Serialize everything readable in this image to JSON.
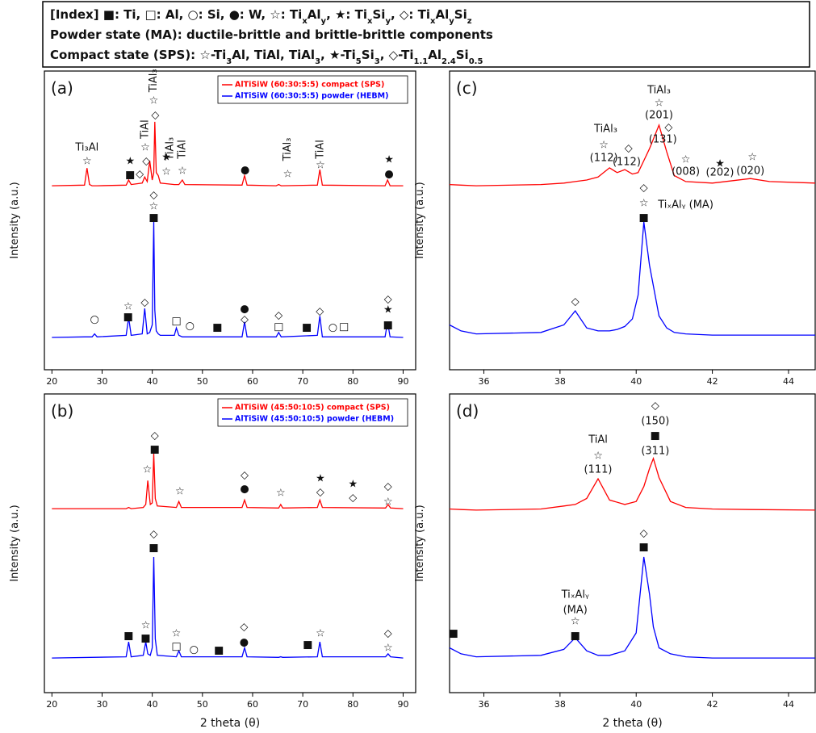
{
  "header": {
    "lines": [
      [
        "[Index] ■: Ti, □: Al, ○: Si, ●: W, ☆: Ti",
        {
          "text": "x",
          "sub": true
        },
        "Al",
        {
          "text": "y",
          "sub": true
        },
        ", ★: Ti",
        {
          "text": "x",
          "sub": true
        },
        "Si",
        {
          "text": "y",
          "sub": true
        },
        ", ◇: Ti",
        {
          "text": "x",
          "sub": true
        },
        "Al",
        {
          "text": "y",
          "sub": true
        },
        "Si",
        {
          "text": "z",
          "sub": true
        }
      ],
      [
        "Powder state (MA): ductile-brittle and brittle-brittle components"
      ],
      [
        "Compact state (SPS): ☆-Ti",
        {
          "text": "3",
          "sub": true
        },
        "Al, TiAl, TiAl",
        {
          "text": "3",
          "sub": true
        },
        ", ★-Ti",
        {
          "text": "5",
          "sub": true
        },
        "Si",
        {
          "text": "3",
          "sub": true
        },
        ", ◇-Ti",
        {
          "text": "1.1",
          "sub": true
        },
        "Al",
        {
          "text": "2.4",
          "sub": true
        },
        "Si",
        {
          "text": "0.5",
          "sub": true
        }
      ]
    ]
  },
  "chart_data": [
    {
      "type": "line",
      "panel": "(a)",
      "y_label": "Intensity (a.u.)",
      "legend": true,
      "xlim": [
        18.5,
        92.5
      ],
      "xticks": [
        20,
        30,
        40,
        50,
        60,
        70,
        80,
        90
      ],
      "ylim": [
        0,
        100
      ],
      "x": [
        20,
        26.5,
        27,
        27.5,
        28,
        28.5,
        29,
        34.8,
        35.3,
        35.8,
        38,
        38.5,
        39,
        39.5,
        40,
        40.3,
        40.5,
        40.8,
        41.2,
        41.6,
        44.4,
        44.8,
        45.3,
        46,
        46.5,
        57.9,
        58.4,
        58.9,
        64.7,
        65.2,
        65.7,
        72.9,
        73.4,
        73.9,
        86.4,
        86.9,
        87.4,
        90
      ],
      "series": [
        {
          "name": "AlTiSiW (60:30:5:5) compact (SPS)",
          "color": "#ff0000",
          "values": [
            61.6,
            61.8,
            67.5,
            62,
            61.6,
            61.6,
            61.6,
            61.8,
            63.5,
            62,
            62.5,
            64.5,
            63,
            70,
            63.5,
            66,
            83,
            66,
            65,
            62.5,
            62,
            62,
            62,
            63.5,
            62,
            61.8,
            65,
            61.8,
            61.6,
            62,
            61.6,
            61.8,
            67,
            61.8,
            61.6,
            63.5,
            61.6,
            61.6
          ]
        },
        {
          "name": "AlTiSiW (60:30:5:5) powder (HEBM)",
          "color": "#0000ff",
          "values": [
            10.8,
            11,
            11,
            11,
            11,
            12,
            11,
            11.5,
            17.5,
            11.5,
            12,
            20.5,
            12,
            12.5,
            15,
            49.5,
            20,
            13,
            12,
            11.5,
            11.5,
            14,
            11.5,
            11,
            11,
            11,
            16,
            11,
            11,
            12.5,
            11,
            11.5,
            18,
            11,
            11,
            16,
            11,
            10.8
          ]
        }
      ],
      "annotations": [
        {
          "text": "Ti₃Al",
          "x": 27,
          "y": 74.3
        },
        {
          "text": "☆",
          "x": 27,
          "y": 69.7
        },
        {
          "text": "★",
          "x": 35.6,
          "y": 69.7
        },
        {
          "text": "■",
          "x": 35.6,
          "y": 65.1
        },
        {
          "text": "◇",
          "x": 37.5,
          "y": 65.4
        },
        {
          "text": "◇",
          "x": 38.8,
          "y": 69.7
        },
        {
          "text": "☆",
          "x": 38.6,
          "y": 74.3
        },
        {
          "text": "TiAl",
          "x": 38.6,
          "y": 80.5,
          "vertical": true
        },
        {
          "text": "☆",
          "x": 40.3,
          "y": 90
        },
        {
          "text": "TiAl₃",
          "x": 40.3,
          "y": 96.8,
          "vertical": true
        },
        {
          "text": "◇",
          "x": 40.6,
          "y": 85.1
        },
        {
          "text": "★",
          "x": 42.8,
          "y": 71.1
        },
        {
          "text": "TiAl₃",
          "x": 43.6,
          "y": 74,
          "vertical": true
        },
        {
          "text": "☆",
          "x": 42.8,
          "y": 66.2
        },
        {
          "text": "TiAl",
          "x": 46,
          "y": 73.8,
          "vertical": true
        },
        {
          "text": "☆",
          "x": 46,
          "y": 66.5
        },
        {
          "text": "●",
          "x": 58.5,
          "y": 66.8
        },
        {
          "text": "TiAl₃",
          "x": 67,
          "y": 73.8,
          "vertical": true
        },
        {
          "text": "☆",
          "x": 67,
          "y": 65.4
        },
        {
          "text": "TiAl",
          "x": 73.5,
          "y": 73.8,
          "vertical": true
        },
        {
          "text": "☆",
          "x": 73.5,
          "y": 68.4
        },
        {
          "text": "★",
          "x": 87.2,
          "y": 70.3
        },
        {
          "text": "●",
          "x": 87.2,
          "y": 65.4
        },
        {
          "text": "○",
          "x": 28.5,
          "y": 16.8
        },
        {
          "text": "☆",
          "x": 35.2,
          "y": 21.1
        },
        {
          "text": "■",
          "x": 35.2,
          "y": 17.6
        },
        {
          "text": "◇",
          "x": 38.5,
          "y": 22.4
        },
        {
          "text": "◇",
          "x": 40.3,
          "y": 58.4
        },
        {
          "text": "☆",
          "x": 40.3,
          "y": 54.6
        },
        {
          "text": "■",
          "x": 40.3,
          "y": 50.8
        },
        {
          "text": "□",
          "x": 44.8,
          "y": 16.2
        },
        {
          "text": "○",
          "x": 47.5,
          "y": 14.6
        },
        {
          "text": "■",
          "x": 53,
          "y": 14.1
        },
        {
          "text": "●",
          "x": 58.4,
          "y": 20.3
        },
        {
          "text": "◇",
          "x": 58.4,
          "y": 16.8
        },
        {
          "text": "◇",
          "x": 65.2,
          "y": 18.1
        },
        {
          "text": "□",
          "x": 65.2,
          "y": 14.3
        },
        {
          "text": "■",
          "x": 70.8,
          "y": 14.1
        },
        {
          "text": "◇",
          "x": 73.4,
          "y": 19.5
        },
        {
          "text": "○",
          "x": 76,
          "y": 14.1
        },
        {
          "text": "□",
          "x": 78.2,
          "y": 14.3
        },
        {
          "text": "◇",
          "x": 87,
          "y": 23.5
        },
        {
          "text": "★",
          "x": 87,
          "y": 20
        },
        {
          "text": "■",
          "x": 87,
          "y": 14.9
        }
      ]
    },
    {
      "type": "line",
      "panel": "(b)",
      "y_label": "Intensity (a.u.)",
      "x_label": "2 theta (θ)",
      "legend": true,
      "xlim": [
        18.5,
        92.5
      ],
      "xticks": [
        20,
        30,
        40,
        50,
        60,
        70,
        80,
        90
      ],
      "ylim": [
        0,
        100
      ],
      "x": [
        20,
        34.8,
        35.3,
        35.8,
        38.2,
        38.7,
        39.1,
        39.6,
        40,
        40.3,
        40.6,
        41,
        44.8,
        45.3,
        45.8,
        57.9,
        58.4,
        58.9,
        65.2,
        65.6,
        66,
        72.9,
        73.4,
        73.9,
        86.5,
        87,
        87.5,
        90
      ],
      "series": [
        {
          "name": "AlTiSiW (45:50:10:5) compact (SPS)",
          "color": "#ff0000",
          "values": [
            61.6,
            61.6,
            62,
            61.6,
            62,
            63,
            71,
            63,
            63.5,
            80,
            65,
            62.5,
            62,
            64,
            62,
            62,
            64.5,
            62,
            61.8,
            63,
            61.8,
            62,
            64.5,
            62,
            61.8,
            63,
            61.8,
            61.6
          ]
        },
        {
          "name": "AlTiSiW (45:50:10:5) powder (HEBM)",
          "color": "#0000ff",
          "values": [
            11.6,
            12,
            17,
            12,
            12.5,
            17,
            13,
            12.5,
            15,
            45.4,
            18,
            12.5,
            12,
            14,
            12,
            12,
            15,
            12,
            11.8,
            12,
            11.8,
            12,
            17,
            12,
            12,
            13,
            12,
            11.6
          ]
        }
      ],
      "annotations": [
        {
          "text": "☆",
          "x": 39,
          "y": 74.6
        },
        {
          "text": "◇",
          "x": 40.5,
          "y": 85.9
        },
        {
          "text": "■",
          "x": 40.5,
          "y": 81.4
        },
        {
          "text": "☆",
          "x": 45.5,
          "y": 67.3
        },
        {
          "text": "◇",
          "x": 58.4,
          "y": 72.7
        },
        {
          "text": "●",
          "x": 58.4,
          "y": 68.1
        },
        {
          "text": "☆",
          "x": 65.6,
          "y": 66.8
        },
        {
          "text": "★",
          "x": 73.5,
          "y": 71.6
        },
        {
          "text": "◇",
          "x": 73.5,
          "y": 67
        },
        {
          "text": "★",
          "x": 80,
          "y": 69.7
        },
        {
          "text": "◇",
          "x": 80,
          "y": 65.1
        },
        {
          "text": "◇",
          "x": 87,
          "y": 68.9
        },
        {
          "text": "☆",
          "x": 87,
          "y": 63.8
        },
        {
          "text": "◇",
          "x": 40.3,
          "y": 53
        },
        {
          "text": "■",
          "x": 40.3,
          "y": 48.4
        },
        {
          "text": "■",
          "x": 35.3,
          "y": 18.9
        },
        {
          "text": "☆",
          "x": 38.7,
          "y": 22.4
        },
        {
          "text": "■",
          "x": 38.7,
          "y": 18.1
        },
        {
          "text": "☆",
          "x": 44.8,
          "y": 19.7
        },
        {
          "text": "□",
          "x": 44.8,
          "y": 15.4
        },
        {
          "text": "○",
          "x": 48.3,
          "y": 14.3
        },
        {
          "text": "■",
          "x": 53.3,
          "y": 14.1
        },
        {
          "text": "◇",
          "x": 58.3,
          "y": 21.9
        },
        {
          "text": "●",
          "x": 58.3,
          "y": 16.8
        },
        {
          "text": "■",
          "x": 71,
          "y": 15.9
        },
        {
          "text": "☆",
          "x": 73.5,
          "y": 19.7
        },
        {
          "text": "◇",
          "x": 87,
          "y": 19.7
        },
        {
          "text": "☆",
          "x": 87,
          "y": 14.9
        }
      ]
    },
    {
      "type": "line",
      "panel": "(c)",
      "y_label": "Intensity (a.u.)",
      "xlim": [
        35.1,
        44.7
      ],
      "xticks": [
        36,
        38,
        40,
        42,
        44
      ],
      "ylim": [
        0,
        100
      ],
      "x": [
        35.1,
        35.4,
        35.8,
        37.5,
        38.1,
        38.4,
        38.7,
        39.0,
        39.3,
        39.5,
        39.7,
        39.9,
        40.05,
        40.2,
        40.35,
        40.6,
        40.8,
        41.0,
        41.3,
        42,
        43,
        43.5,
        44.7
      ],
      "series": [
        {
          "color": "#ff0000",
          "values": [
            62,
            61.8,
            61.6,
            62,
            62.5,
            63,
            63.5,
            64.5,
            67.6,
            66,
            67,
            65.5,
            66,
            70,
            74,
            81.9,
            73,
            65,
            63,
            62.5,
            64,
            63,
            62.5
          ]
        },
        {
          "color": "#0000ff",
          "values": [
            15,
            13,
            12,
            12.5,
            15,
            19.7,
            14,
            13,
            13,
            13.5,
            14.5,
            17,
            25,
            49.5,
            35,
            18,
            14,
            12.5,
            12,
            11.6,
            11.6,
            11.6,
            11.6
          ]
        }
      ],
      "annotations": [
        {
          "text": "TiAl₃",
          "x": 40.6,
          "y": 93.5
        },
        {
          "text": "☆",
          "x": 40.6,
          "y": 89.2
        },
        {
          "text": "(201)",
          "x": 40.6,
          "y": 85.1
        },
        {
          "text": "◇",
          "x": 40.85,
          "y": 81.1
        },
        {
          "text": "(131)",
          "x": 40.7,
          "y": 77
        },
        {
          "text": "TiAl₃",
          "x": 39.2,
          "y": 80.5
        },
        {
          "text": "☆",
          "x": 39.15,
          "y": 75.1
        },
        {
          "text": "(112)",
          "x": 39.15,
          "y": 70.8
        },
        {
          "text": "◇",
          "x": 39.8,
          "y": 74
        },
        {
          "text": "(112)",
          "x": 39.75,
          "y": 69.5
        },
        {
          "text": "☆",
          "x": 41.3,
          "y": 70.3
        },
        {
          "text": "(008)",
          "x": 41.3,
          "y": 66.2
        },
        {
          "text": "★",
          "x": 42.2,
          "y": 68.9
        },
        {
          "text": "(202)",
          "x": 42.2,
          "y": 65.9
        },
        {
          "text": "☆",
          "x": 43.05,
          "y": 71.1
        },
        {
          "text": "(020)",
          "x": 43,
          "y": 66.5
        },
        {
          "text": "◇",
          "x": 40.2,
          "y": 60.8
        },
        {
          "text": "☆",
          "x": 40.2,
          "y": 55.7
        },
        {
          "text": "TiₓAlᵧ (MA)",
          "x": 41.3,
          "y": 55.1
        },
        {
          "text": "■",
          "x": 40.2,
          "y": 50.8
        },
        {
          "text": "◇",
          "x": 38.4,
          "y": 22.7
        }
      ]
    },
    {
      "type": "line",
      "panel": "(d)",
      "y_label": "Intensity (a.u.)",
      "x_label": "2 theta (θ)",
      "xlim": [
        35.1,
        44.7
      ],
      "xticks": [
        36,
        38,
        40,
        42,
        44
      ],
      "ylim": [
        0,
        100
      ],
      "x": [
        35.1,
        35.4,
        35.8,
        37.5,
        38.1,
        38.4,
        38.7,
        39.0,
        39.3,
        39.7,
        40.0,
        40.2,
        40.35,
        40.45,
        40.6,
        40.9,
        41.3,
        42,
        43,
        44.7
      ],
      "series": [
        {
          "color": "#ff0000",
          "values": [
            61.5,
            61.3,
            61.1,
            61.5,
            62.5,
            63,
            65,
            71.6,
            64.5,
            63,
            64,
            69,
            75,
            78.4,
            72,
            64,
            62,
            61.5,
            61.3,
            61.1
          ]
        },
        {
          "color": "#0000ff",
          "values": [
            15,
            13,
            12,
            12.5,
            14.5,
            18.4,
            14,
            12.5,
            12.5,
            14,
            20,
            45.4,
            33,
            22,
            15,
            13,
            12,
            11.6,
            11.6,
            11.6
          ]
        }
      ],
      "annotations": [
        {
          "text": "◇",
          "x": 40.5,
          "y": 95.9
        },
        {
          "text": "(150)",
          "x": 40.5,
          "y": 90.8
        },
        {
          "text": "■",
          "x": 40.5,
          "y": 85.9
        },
        {
          "text": "(311)",
          "x": 40.5,
          "y": 80.8
        },
        {
          "text": "TiAl",
          "x": 39,
          "y": 84.6
        },
        {
          "text": "☆",
          "x": 39,
          "y": 79.2
        },
        {
          "text": "(111)",
          "x": 39,
          "y": 74.6
        },
        {
          "text": "◇",
          "x": 40.2,
          "y": 53.2
        },
        {
          "text": "■",
          "x": 40.2,
          "y": 48.6
        },
        {
          "text": "TiₓAlᵧ",
          "x": 38.4,
          "y": 32.7
        },
        {
          "text": "(MA)",
          "x": 38.4,
          "y": 27.6
        },
        {
          "text": "☆",
          "x": 38.4,
          "y": 23.8
        },
        {
          "text": "■",
          "x": 38.4,
          "y": 18.9
        },
        {
          "text": "■",
          "x": 35.2,
          "y": 19.7
        }
      ]
    }
  ]
}
